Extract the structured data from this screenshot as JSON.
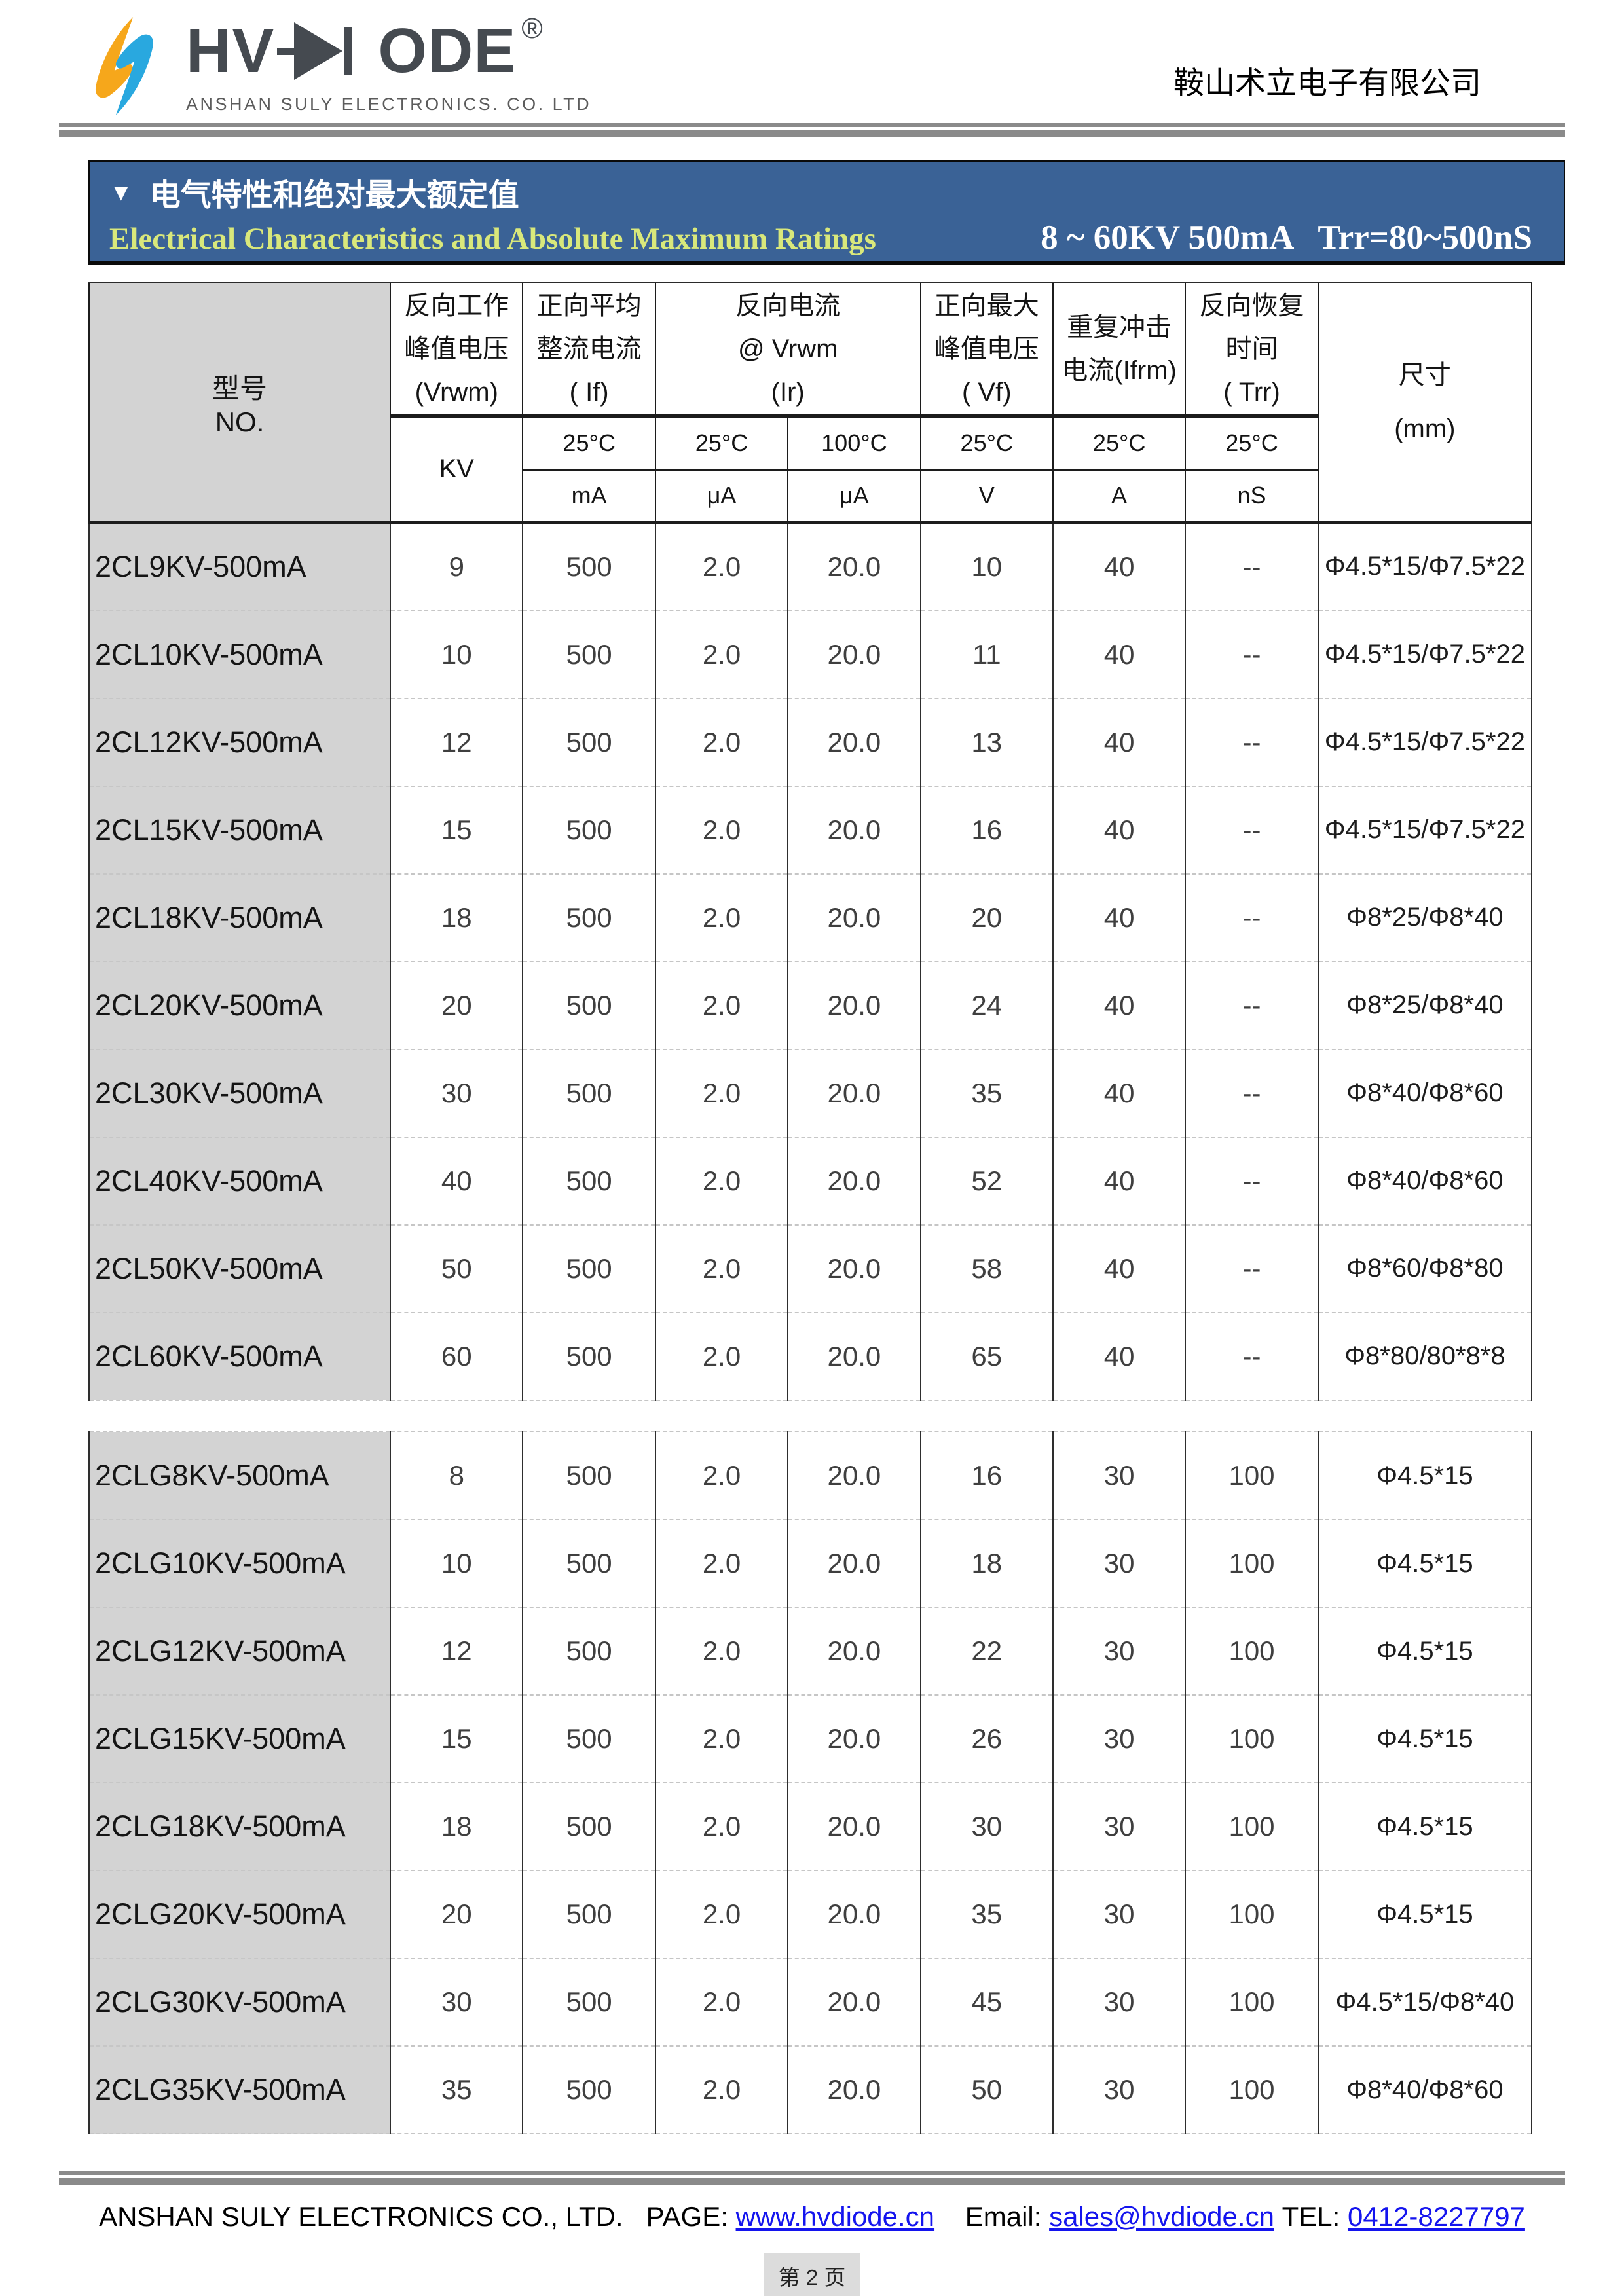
{
  "logo": {
    "brand_left": "HV",
    "brand_right": "ODE",
    "registered": "®",
    "subtitle": "ANSHAN SULY ELECTRONICS. CO. LTD"
  },
  "header": {
    "company_cn": "鞍山术立电子有限公司"
  },
  "title_bar": {
    "triangle": "▼",
    "title_cn": "电气特性和绝对最大额定值",
    "title_en": "Electrical Characteristics and Absolute Maximum Ratings",
    "range_text": "8 ~ 60KV 500mA   Trr=80~500nS",
    "bar_color": "#3A6296",
    "title_en_color": "#D9E87B"
  },
  "th": {
    "model": [
      "型号",
      "NO."
    ],
    "vrwm": [
      "反向工作",
      "峰值电压",
      "(Vrwm)"
    ],
    "vrwm_unit": "KV",
    "if": [
      "正向平均",
      "整流电流",
      "( If)"
    ],
    "ir": [
      "反向电流",
      "@ Vrwm",
      "(Ir)"
    ],
    "vf": [
      "正向最大",
      "峰值电压",
      "( Vf)"
    ],
    "ifrm": [
      "重复冲击",
      "电流(Ifrm)"
    ],
    "trr": [
      "反向恢复",
      "时间",
      "( Trr)"
    ],
    "size": [
      "尺寸",
      "(mm)"
    ],
    "temps": {
      "if": "25°C",
      "ir1": "25°C",
      "ir2": "100°C",
      "vf": "25°C",
      "ifrm": "25°C",
      "trr": "25°C"
    },
    "units": {
      "if": "mA",
      "ir1": "μA",
      "ir2": "μA",
      "vf": "V",
      "ifrm": "A",
      "trr": "nS"
    }
  },
  "table": {
    "rows1": [
      [
        "2CL9KV-500mA",
        "9",
        "500",
        "2.0",
        "20.0",
        "10",
        "40",
        "--",
        "Φ4.5*15/Φ7.5*22"
      ],
      [
        "2CL10KV-500mA",
        "10",
        "500",
        "2.0",
        "20.0",
        "11",
        "40",
        "--",
        "Φ4.5*15/Φ7.5*22"
      ],
      [
        "2CL12KV-500mA",
        "12",
        "500",
        "2.0",
        "20.0",
        "13",
        "40",
        "--",
        "Φ4.5*15/Φ7.5*22"
      ],
      [
        "2CL15KV-500mA",
        "15",
        "500",
        "2.0",
        "20.0",
        "16",
        "40",
        "--",
        "Φ4.5*15/Φ7.5*22"
      ],
      [
        "2CL18KV-500mA",
        "18",
        "500",
        "2.0",
        "20.0",
        "20",
        "40",
        "--",
        "Φ8*25/Φ8*40"
      ],
      [
        "2CL20KV-500mA",
        "20",
        "500",
        "2.0",
        "20.0",
        "24",
        "40",
        "--",
        "Φ8*25/Φ8*40"
      ],
      [
        "2CL30KV-500mA",
        "30",
        "500",
        "2.0",
        "20.0",
        "35",
        "40",
        "--",
        "Φ8*40/Φ8*60"
      ],
      [
        "2CL40KV-500mA",
        "40",
        "500",
        "2.0",
        "20.0",
        "52",
        "40",
        "--",
        "Φ8*40/Φ8*60"
      ],
      [
        "2CL50KV-500mA",
        "50",
        "500",
        "2.0",
        "20.0",
        "58",
        "40",
        "--",
        "Φ8*60/Φ8*80"
      ],
      [
        "2CL60KV-500mA",
        "60",
        "500",
        "2.0",
        "20.0",
        "65",
        "40",
        "--",
        "Φ8*80/80*8*8"
      ]
    ],
    "rows2": [
      [
        "2CLG8KV-500mA",
        "8",
        "500",
        "2.0",
        "20.0",
        "16",
        "30",
        "100",
        "Φ4.5*15"
      ],
      [
        "2CLG10KV-500mA",
        "10",
        "500",
        "2.0",
        "20.0",
        "18",
        "30",
        "100",
        "Φ4.5*15"
      ],
      [
        "2CLG12KV-500mA",
        "12",
        "500",
        "2.0",
        "20.0",
        "22",
        "30",
        "100",
        "Φ4.5*15"
      ],
      [
        "2CLG15KV-500mA",
        "15",
        "500",
        "2.0",
        "20.0",
        "26",
        "30",
        "100",
        "Φ4.5*15"
      ],
      [
        "2CLG18KV-500mA",
        "18",
        "500",
        "2.0",
        "20.0",
        "30",
        "30",
        "100",
        "Φ4.5*15"
      ],
      [
        "2CLG20KV-500mA",
        "20",
        "500",
        "2.0",
        "20.0",
        "35",
        "30",
        "100",
        "Φ4.5*15"
      ],
      [
        "2CLG30KV-500mA",
        "30",
        "500",
        "2.0",
        "20.0",
        "45",
        "30",
        "100",
        "Φ4.5*15/Φ8*40"
      ],
      [
        "2CLG35KV-500mA",
        "35",
        "500",
        "2.0",
        "20.0",
        "50",
        "30",
        "100",
        "Φ8*40/Φ8*60"
      ]
    ]
  },
  "footer": {
    "company": "ANSHAN SULY ELECTRONICS CO., LTD.",
    "page_label": "PAGE: ",
    "page_link": "www.hvdiode.cn",
    "email_label": "Email: ",
    "email_link": "sales@hvdiode.cn",
    "tel_label": "TEL: ",
    "tel_link": "0412-8227797",
    "page_number": "第 2 页"
  }
}
